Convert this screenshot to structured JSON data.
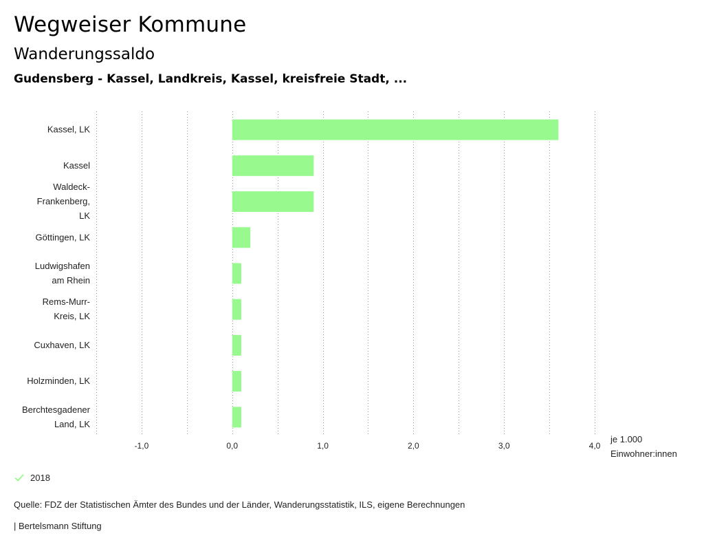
{
  "header": {
    "title": "Wegweiser Kommune",
    "subtitle": "Wanderungssaldo",
    "region": "Gudensberg - Kassel, Landkreis, Kassel, kreisfreie Stadt, ..."
  },
  "chart_data": {
    "type": "bar",
    "orientation": "horizontal",
    "categories": [
      [
        "Kassel, LK"
      ],
      [
        "Kassel"
      ],
      [
        "Waldeck-",
        "Frankenberg,",
        "LK"
      ],
      [
        "Göttingen, LK"
      ],
      [
        "Ludwigshafen",
        "am Rhein"
      ],
      [
        "Rems-Murr-",
        "Kreis, LK"
      ],
      [
        "Cuxhaven, LK"
      ],
      [
        "Holzminden, LK"
      ],
      [
        "Berchtesgadener",
        "Land, LK"
      ]
    ],
    "series": [
      {
        "name": "2018",
        "values": [
          3.6,
          0.9,
          0.9,
          0.2,
          0.1,
          0.1,
          0.1,
          0.1,
          0.1
        ]
      }
    ],
    "xlim": [
      -1.5,
      4.0
    ],
    "ticks": [
      -1.0,
      0.0,
      1.0,
      2.0,
      3.0,
      4.0
    ],
    "tick_labels": [
      "-1,0",
      "0,0",
      "1,0",
      "2,0",
      "3,0",
      "4,0"
    ],
    "grid": true,
    "bar_color": "#98f98f",
    "grid_color": "#999999",
    "unit_label": [
      "je 1.000",
      "Einwohner:innen"
    ]
  },
  "legend": {
    "label": "2018",
    "color": "#98f98f"
  },
  "source": "Quelle: FDZ der Statistischen Ämter des Bundes und der Länder, Wanderungsstatistik, ILS, eigene Berechnungen",
  "footer": "| Bertelsmann Stiftung"
}
